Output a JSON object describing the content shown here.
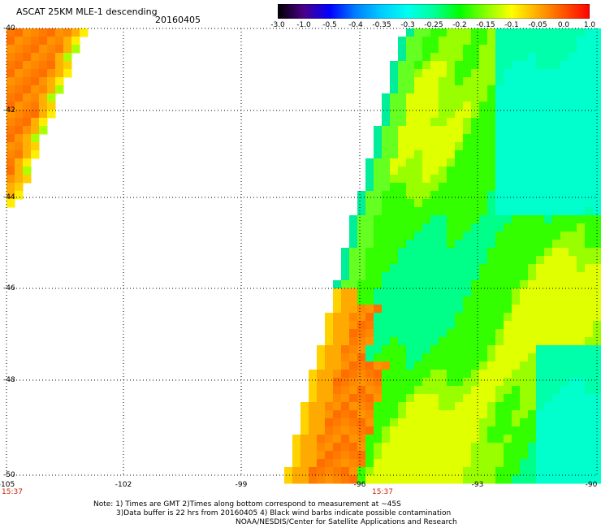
{
  "header": {
    "title": "ASCAT 25KM MLE-1 descending",
    "date": "20160405"
  },
  "colorbar": {
    "labels": [
      "-3.0",
      "-1.0",
      "-0.5",
      "-0.4",
      "-0.35",
      "-0.3",
      "-0.25",
      "-0.2",
      "-0.15",
      "-0.1",
      "-0.05",
      "0.0",
      "1.0"
    ],
    "colors": [
      "#000000",
      "#4a0088",
      "#0000ff",
      "#0080ff",
      "#00ccff",
      "#00ffee",
      "#00ff99",
      "#00ff00",
      "#88ff00",
      "#ffff00",
      "#ffaa00",
      "#ff5500",
      "#ff0000"
    ]
  },
  "axes": {
    "lat_labels": [
      "-40",
      "-42",
      "-44",
      "-46",
      "-48",
      "-50"
    ],
    "lon_labels": [
      "-105",
      "-102",
      "-99",
      "-96",
      "-93",
      "-90"
    ],
    "time_labels": [
      "15:37",
      "15:37"
    ]
  },
  "notes": {
    "line1": "Note: 1) Times are GMT 2)Times along bottom correspond to measurement at ~45S",
    "line2": "3)Data buffer is 22 hrs from 20160405 4) Black wind barbs indicate possible contamination",
    "line3": "NOAA/NESDIS/Center for Satellite Applications and Research"
  }
}
